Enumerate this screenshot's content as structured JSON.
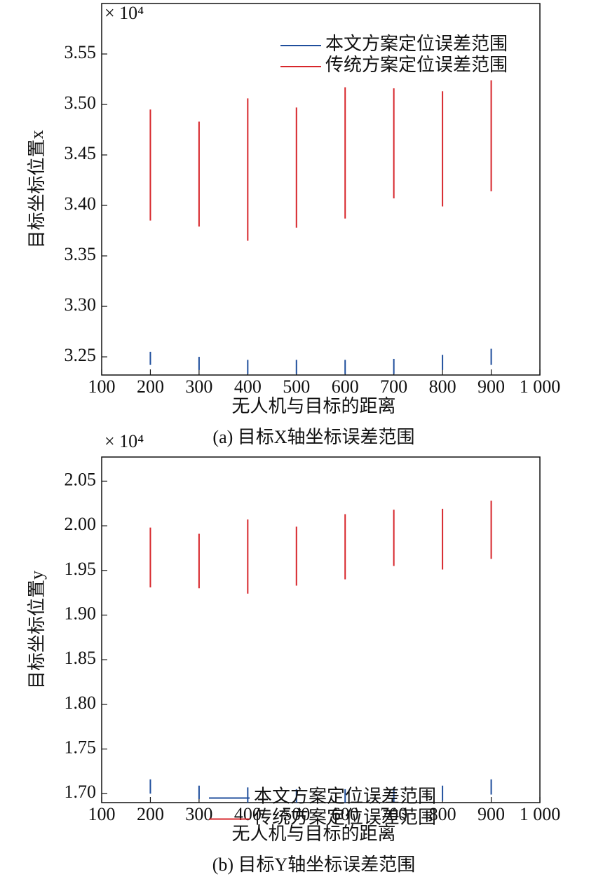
{
  "chart_data": [
    {
      "type": "range",
      "scale_label": "× 10⁴",
      "xlabel": "无人机与目标的距离",
      "ylabel": "目标坐标位置x",
      "caption": "(a) 目标X轴坐标误差范围",
      "xlim": [
        100,
        1000
      ],
      "ylim": [
        3.232,
        3.6
      ],
      "xticks": [
        100,
        200,
        300,
        400,
        500,
        600,
        700,
        800,
        900,
        {
          "value": 1000,
          "label": "1 000"
        }
      ],
      "yticks": [
        3.25,
        {
          "value": 3.3,
          "label": "3.30"
        },
        3.35,
        {
          "value": 3.4,
          "label": "3.40"
        },
        3.45,
        {
          "value": 3.5,
          "label": "3.50"
        },
        3.55
      ],
      "x": [
        200,
        300,
        400,
        500,
        600,
        700,
        800,
        900
      ],
      "legend": "upper right",
      "series": [
        {
          "name": "本文方案定位误差范围",
          "color": "#1f4e9c",
          "low": [
            3.242,
            3.237,
            3.233,
            3.233,
            3.233,
            3.233,
            3.237,
            3.242
          ],
          "high": [
            3.255,
            3.25,
            3.247,
            3.247,
            3.247,
            3.248,
            3.252,
            3.258
          ]
        },
        {
          "name": "传统方案定位误差范围",
          "color": "#d7262b",
          "low": [
            3.385,
            3.379,
            3.365,
            3.378,
            3.387,
            3.407,
            3.399,
            3.414
          ],
          "high": [
            3.495,
            3.483,
            3.506,
            3.497,
            3.517,
            3.516,
            3.513,
            3.524
          ]
        }
      ]
    },
    {
      "type": "range",
      "scale_label": "× 10⁴",
      "xlabel": "无人机与目标的距离",
      "ylabel": "目标坐标位置y",
      "caption": "(b) 目标Y轴坐标误差范围",
      "xlim": [
        100,
        1000
      ],
      "ylim": [
        1.69,
        2.077
      ],
      "xticks": [
        100,
        200,
        300,
        400,
        500,
        600,
        700,
        800,
        900,
        {
          "value": 1000,
          "label": "1 000"
        }
      ],
      "yticks": [
        {
          "value": 1.7,
          "label": "1.70"
        },
        1.75,
        {
          "value": 1.8,
          "label": "1.80"
        },
        1.85,
        {
          "value": 1.9,
          "label": "1.90"
        },
        1.95,
        {
          "value": 2.0,
          "label": "2.00"
        },
        2.05
      ],
      "x": [
        200,
        300,
        400,
        500,
        600,
        700,
        800,
        900
      ],
      "legend": "center",
      "series": [
        {
          "name": "本文方案定位误差范围",
          "color": "#1f4e9c",
          "low": [
            1.7,
            1.694,
            1.69,
            1.69,
            1.69,
            1.69,
            1.692,
            1.699
          ],
          "high": [
            1.716,
            1.709,
            1.707,
            1.705,
            1.705,
            1.707,
            1.709,
            1.716
          ]
        },
        {
          "name": "传统方案定位误差范围",
          "color": "#d7262b",
          "low": [
            1.931,
            1.93,
            1.924,
            1.933,
            1.94,
            1.955,
            1.951,
            1.963
          ],
          "high": [
            1.998,
            1.991,
            2.007,
            1.999,
            2.013,
            2.018,
            2.019,
            2.028
          ]
        }
      ]
    }
  ]
}
